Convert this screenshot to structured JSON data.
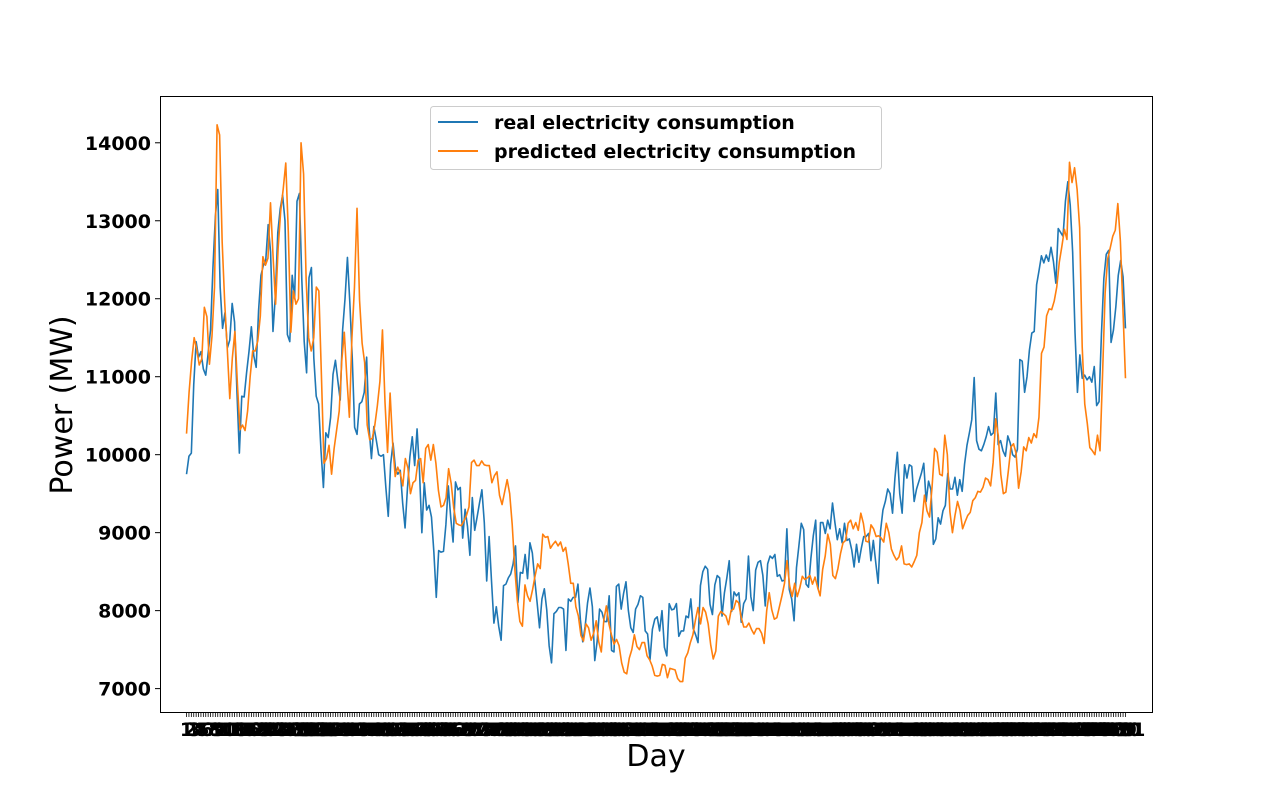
{
  "chart_data": {
    "type": "line",
    "title": "",
    "xlabel": "Day",
    "ylabel": "Power (MW)",
    "ylim": [
      6700,
      14600
    ],
    "xlim": [
      -6.5,
      236.5
    ],
    "yticks": [
      7000,
      8000,
      9000,
      10000,
      11000,
      12000,
      13000,
      14000
    ],
    "grid": false,
    "legend": "top-center",
    "x_tick_note": "one integer day label per data point (1 to 231), printed overlapping along the x axis",
    "series": [
      {
        "name": "real electricity consumption",
        "color": "#1f77b4",
        "values": [
          9750,
          9980,
          10020,
          10900,
          11450,
          11250,
          11320,
          11100,
          11020,
          11300,
          11600,
          12400,
          13050,
          13400,
          12150,
          11620,
          11820,
          11370,
          11470,
          11940,
          11700,
          10800,
          10020,
          10750,
          10740,
          11050,
          11320,
          11640,
          11270,
          11120,
          11850,
          12300,
          12430,
          12500,
          12950,
          12600,
          11580,
          12050,
          12850,
          13150,
          13330,
          13000,
          11540,
          11450,
          12300,
          12000,
          13250,
          13350,
          12250,
          11450,
          11050,
          12270,
          12400,
          11240,
          10750,
          10650,
          10050,
          9580,
          10280,
          10220,
          10480,
          11030,
          11210,
          10950,
          10700,
          11600,
          12000,
          12530,
          11950,
          11250,
          10350,
          10260,
          10650,
          10680,
          10800,
          11250,
          10350,
          9950,
          10360,
          10190,
          10000,
          9980,
          10000,
          9580,
          9210,
          9880,
          10150,
          9820,
          9750,
          9800,
          9380,
          9060,
          9570,
          9970,
          10230,
          9860,
          10330,
          9800,
          9000,
          9640,
          9290,
          9350,
          9200,
          8750,
          8170,
          8770,
          8750,
          8760,
          9100,
          9600,
          9200,
          8880,
          9650,
          9550,
          9580,
          8930,
          9300,
          9080,
          8710,
          9450,
          9030,
          9200,
          9380,
          9550,
          9130,
          8380,
          8950,
          8380,
          7840,
          8050,
          7800,
          7620,
          8320,
          8340,
          8420,
          8470,
          8600,
          8830,
          8100,
          8490,
          8480,
          8720,
          8410,
          8870,
          8740,
          8400,
          8100,
          7780,
          8150,
          8280,
          8010,
          7550,
          7330,
          7960,
          7990,
          8040,
          8040,
          8020,
          7490,
          8150,
          8120,
          8170,
          8170,
          8340,
          7890,
          7600,
          7800,
          8100,
          8290,
          8050,
          7360,
          7610,
          8020,
          7980,
          7860,
          7860,
          8190,
          7490,
          7470,
          8310,
          8340,
          8020,
          8220,
          8370,
          8000,
          7780,
          7720,
          8020,
          8080,
          8190,
          8170,
          7740,
          7700,
          7370,
          7760,
          7890,
          7920,
          7740,
          8000,
          7530,
          7420,
          8090,
          8010,
          8020,
          8090,
          7670,
          7740,
          7740,
          7930,
          7910,
          8150,
          7770,
          7690,
          7590,
          8320,
          8500,
          8570,
          8530,
          8080,
          7950,
          8330,
          8450,
          8420,
          7930,
          8230,
          8420,
          8640,
          7990,
          8240,
          8190,
          8230,
          7850,
          8090,
          8150,
          8700,
          8180,
          8000,
          8520,
          8620,
          8640,
          8450,
          8060,
          8600,
          8700,
          8670,
          8720,
          8440,
          8460,
          8380,
          8390,
          9050,
          8270,
          8150,
          7870,
          8550,
          8830,
          9120,
          9040,
          8340,
          8300,
          8670,
          8960,
          9160,
          8280,
          9130,
          9130,
          8990,
          9160,
          9050,
          9380,
          9130,
          8910,
          9050,
          8870,
          9120,
          8900,
          8920,
          8780,
          8560,
          8850,
          8620,
          8800,
          8950,
          8950,
          8990,
          8640,
          8900,
          8620,
          8350,
          9020,
          9290,
          9400,
          9560,
          9500,
          9250,
          9700,
          10030,
          9500,
          9250,
          9870,
          9700,
          9870,
          9850,
          9400,
          9560,
          9660,
          9760,
          9890,
          9400,
          9660,
          9550,
          8850,
          8920,
          9190,
          9110,
          9280,
          9350,
          9760,
          9560,
          9560,
          9710,
          9480,
          9680,
          9530,
          9880,
          10120,
          10280,
          10450,
          10990,
          10180,
          10070,
          10050,
          10130,
          10230,
          10360,
          10250,
          10280,
          10790,
          10130,
          10180,
          10050,
          9980,
          10240,
          10150,
          10000,
          9970,
          10070,
          11220,
          11200,
          10800,
          11000,
          11340,
          11560,
          11580,
          12180,
          12360,
          12550,
          12460,
          12560,
          12480,
          12660,
          12480,
          12200,
          12900,
          12850,
          12800,
          13250,
          13500,
          13200,
          12600,
          11560,
          10800,
          11280,
          10980,
          11020,
          10960,
          11000,
          10930,
          11130,
          10630,
          10680,
          11550,
          12260,
          12570,
          12620,
          11440,
          11600,
          11900,
          12300,
          12490,
          12280,
          11620
        ]
      },
      {
        "name": "predicted electricity consumption",
        "color": "#ff7f0e",
        "values": [
          10270,
          10800,
          11200,
          11500,
          11350,
          11150,
          11230,
          11890,
          11770,
          11160,
          11520,
          12150,
          14230,
          14100,
          12730,
          11950,
          11360,
          10720,
          11240,
          11580,
          10900,
          10320,
          10380,
          10310,
          10560,
          11000,
          11330,
          11330,
          11460,
          11780,
          12540,
          12430,
          12520,
          13230,
          12550,
          11930,
          12650,
          13120,
          13410,
          13740,
          12850,
          11570,
          12100,
          11930,
          12000,
          14000,
          13600,
          12250,
          11500,
          11330,
          11500,
          12150,
          12100,
          11030,
          9890,
          9950,
          10120,
          9750,
          10080,
          10320,
          10560,
          11200,
          11570,
          10990,
          10480,
          11500,
          12150,
          13160,
          11980,
          11430,
          11180,
          10380,
          10190,
          10210,
          10380,
          10630,
          10940,
          11600,
          10670,
          10030,
          10790,
          10150,
          9720,
          9840,
          9760,
          9600,
          9950,
          9830,
          9500,
          9640,
          9670,
          9930,
          9950,
          9640,
          10080,
          10130,
          9930,
          10130,
          9890,
          9540,
          9330,
          9350,
          9450,
          9820,
          9630,
          9320,
          9120,
          9100,
          9090,
          9150,
          9220,
          9330,
          9900,
          9930,
          9860,
          9860,
          9920,
          9870,
          9860,
          9860,
          9640,
          9730,
          9780,
          9480,
          9360,
          9520,
          9680,
          9500,
          9100,
          8540,
          8130,
          7860,
          7800,
          8330,
          8190,
          8120,
          8270,
          8450,
          8600,
          8540,
          8980,
          8940,
          8950,
          8800,
          8850,
          8890,
          8830,
          8880,
          8760,
          8810,
          8600,
          8350,
          8350,
          8050,
          7930,
          7680,
          7610,
          7830,
          7780,
          7620,
          7710,
          7870,
          7600,
          7470,
          7880,
          8060,
          7830,
          7690,
          7570,
          7630,
          7550,
          7330,
          7210,
          7190,
          7390,
          7500,
          7690,
          7540,
          7500,
          7590,
          7590,
          7420,
          7370,
          7290,
          7170,
          7160,
          7170,
          7310,
          7300,
          7140,
          7260,
          7250,
          7240,
          7130,
          7090,
          7090,
          7390,
          7460,
          7590,
          7690,
          7880,
          8040,
          7830,
          8040,
          7980,
          7830,
          7560,
          7380,
          7480,
          7930,
          7990,
          7960,
          7930,
          7820,
          8000,
          8020,
          8130,
          8100,
          7910,
          7790,
          7790,
          7840,
          7760,
          7700,
          7770,
          7770,
          7710,
          7580,
          8000,
          8230,
          8010,
          7890,
          7910,
          8050,
          8190,
          8350,
          8640,
          8320,
          8180,
          8350,
          8180,
          8290,
          8440,
          8400,
          8420,
          8450,
          8340,
          8430,
          8300,
          8190,
          8530,
          8700,
          8980,
          8850,
          8450,
          8410,
          8540,
          8730,
          8870,
          8900,
          9120,
          9160,
          9050,
          9130,
          9030,
          9250,
          9120,
          8890,
          8880,
          9100,
          9050,
          8950,
          8960,
          8930,
          8880,
          9120,
          9000,
          8790,
          8710,
          8650,
          8690,
          8830,
          8600,
          8590,
          8600,
          8560,
          8630,
          8710,
          9000,
          9130,
          9480,
          9280,
          9200,
          9590,
          10080,
          10030,
          9750,
          9730,
          10250,
          10000,
          9270,
          9000,
          9220,
          9400,
          9280,
          9050,
          9140,
          9220,
          9260,
          9410,
          9450,
          9530,
          9520,
          9580,
          9700,
          9680,
          9600,
          9900,
          10460,
          10250,
          9750,
          9500,
          9520,
          9800,
          10100,
          10140,
          10020,
          9570,
          9780,
          10100,
          10050,
          10220,
          10150,
          10270,
          10220,
          10480,
          11300,
          11380,
          11780,
          11870,
          11860,
          11970,
          12150,
          12470,
          12670,
          12890,
          12760,
          13750,
          13490,
          13680,
          13400,
          12910,
          11380,
          10650,
          10400,
          10090,
          10050,
          10000,
          10250,
          10050,
          11030,
          12070,
          12510,
          12650,
          12800,
          12880,
          13220,
          12740,
          11870,
          10980
        ]
      }
    ]
  }
}
